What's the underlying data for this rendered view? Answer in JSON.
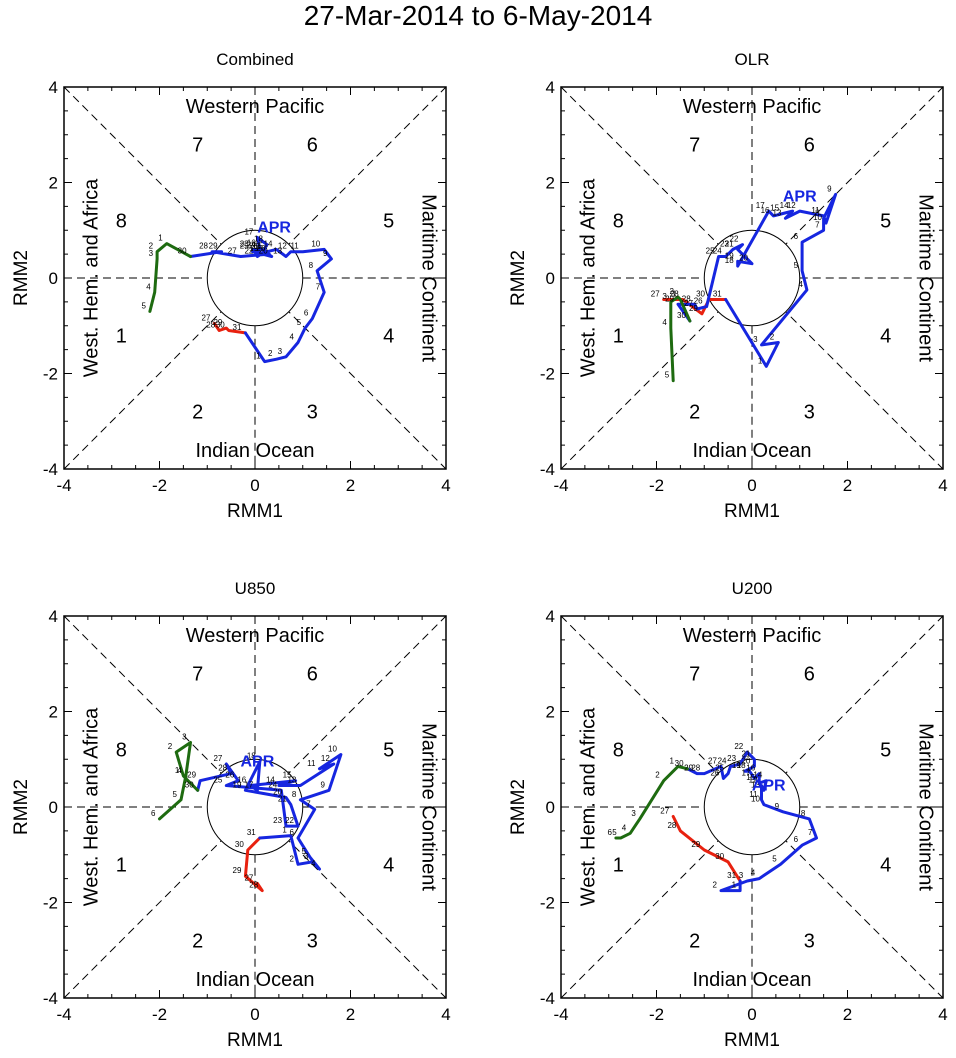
{
  "title": "27-Mar-2014 to 6-May-2014",
  "colors": {
    "march": "#e8210f",
    "april": "#1626e0",
    "may": "#1e6b10",
    "axis": "#000000"
  },
  "region_labels": {
    "top": "Western Pacific",
    "bottom": "Indian Ocean",
    "left": "West. Hem. and Africa",
    "right": "Maritime Continent"
  },
  "phase_labels": [
    {
      "text": "1",
      "x": -2.8,
      "y": -1.2
    },
    {
      "text": "2",
      "x": -1.2,
      "y": -2.8
    },
    {
      "text": "3",
      "x": 1.2,
      "y": -2.8
    },
    {
      "text": "4",
      "x": 2.8,
      "y": -1.2
    },
    {
      "text": "5",
      "x": 2.8,
      "y": 1.2
    },
    {
      "text": "6",
      "x": 1.2,
      "y": 2.8
    },
    {
      "text": "7",
      "x": -1.2,
      "y": 2.8
    },
    {
      "text": "8",
      "x": -2.8,
      "y": 1.2
    }
  ],
  "month_label": "APR",
  "chart_data": [
    {
      "type": "line",
      "title": "Combined",
      "xlabel": "RMM1",
      "ylabel": "RMM2",
      "xlim": [
        -4,
        4
      ],
      "ylim": [
        -4,
        4
      ],
      "xticks": [
        "-4",
        "-2",
        "0",
        "2",
        "4"
      ],
      "yticks": [
        "-4",
        "-2",
        "0",
        "2",
        "4"
      ],
      "apr_label_pos": [
        0.4,
        0.95
      ],
      "series": [
        {
          "name": "Mar",
          "color": "red",
          "points": [
            [
              -0.85,
              -0.95,
              "27"
            ],
            [
              -0.75,
              -1.1,
              "28"
            ],
            [
              -0.6,
              -1.05,
              "29"
            ],
            [
              -0.55,
              -1.1,
              "30"
            ],
            [
              -0.2,
              -1.15,
              "31"
            ]
          ]
        },
        {
          "name": "Apr",
          "color": "blue",
          "points": [
            [
              -0.2,
              -1.15,
              ""
            ],
            [
              0.2,
              -1.75,
              "1"
            ],
            [
              0.45,
              -1.7,
              "2"
            ],
            [
              0.65,
              -1.65,
              "3"
            ],
            [
              0.9,
              -1.35,
              "4"
            ],
            [
              1.05,
              -1.05,
              "5"
            ],
            [
              1.2,
              -0.85,
              "6"
            ],
            [
              1.45,
              -0.3,
              "7"
            ],
            [
              1.3,
              0.15,
              "8"
            ],
            [
              1.6,
              0.4,
              "9"
            ],
            [
              1.45,
              0.6,
              "10"
            ],
            [
              1.0,
              0.55,
              "11"
            ],
            [
              0.75,
              0.55,
              "12"
            ],
            [
              0.65,
              0.45,
              "13"
            ],
            [
              0.45,
              0.6,
              "14"
            ],
            [
              0.25,
              0.55,
              "15"
            ],
            [
              0.1,
              0.62,
              "16"
            ],
            [
              0.05,
              0.85,
              "17"
            ],
            [
              0.25,
              0.7,
              "18"
            ],
            [
              0.15,
              0.5,
              "19"
            ],
            [
              0.35,
              0.45,
              "20"
            ],
            [
              0.2,
              0.55,
              "21"
            ],
            [
              0.05,
              0.45,
              "22"
            ],
            [
              -0.05,
              0.6,
              "23"
            ],
            [
              0.1,
              0.58,
              "24"
            ],
            [
              -0.05,
              0.55,
              "25"
            ],
            [
              0.3,
              0.5,
              "26"
            ],
            [
              -0.3,
              0.45,
              "27"
            ],
            [
              -0.9,
              0.55,
              "28"
            ],
            [
              -0.7,
              0.55,
              "29"
            ],
            [
              -1.35,
              0.45,
              "30"
            ]
          ]
        },
        {
          "name": "May",
          "color": "green",
          "points": [
            [
              -1.35,
              0.45,
              ""
            ],
            [
              -1.85,
              0.72,
              "1"
            ],
            [
              -2.05,
              0.55,
              "2"
            ],
            [
              -2.05,
              0.4,
              "3"
            ],
            [
              -2.1,
              -0.3,
              "4"
            ],
            [
              -2.2,
              -0.7,
              "5"
            ]
          ]
        }
      ]
    },
    {
      "type": "line",
      "title": "OLR",
      "xlabel": "RMM1",
      "ylabel": "RMM2",
      "xlim": [
        -4,
        4
      ],
      "ylim": [
        -4,
        4
      ],
      "xticks": [
        "-4",
        "-2",
        "0",
        "2",
        "4"
      ],
      "yticks": [
        "-4",
        "-2",
        "0",
        "2",
        "4"
      ],
      "apr_label_pos": [
        1.0,
        1.6
      ],
      "series": [
        {
          "name": "Mar",
          "color": "red",
          "points": [
            [
              -1.85,
              -0.45,
              "27"
            ],
            [
              -1.45,
              -0.45,
              "28"
            ],
            [
              -1.05,
              -0.75,
              "29"
            ],
            [
              -0.9,
              -0.45,
              "30"
            ],
            [
              -0.55,
              -0.45,
              "31"
            ]
          ]
        },
        {
          "name": "Apr",
          "color": "blue",
          "points": [
            [
              -0.55,
              -0.45,
              ""
            ],
            [
              0.3,
              -1.85,
              "1"
            ],
            [
              0.55,
              -1.35,
              "2"
            ],
            [
              0.2,
              -1.4,
              "3"
            ],
            [
              1.15,
              -0.25,
              "4"
            ],
            [
              1.05,
              0.15,
              "5"
            ],
            [
              1.05,
              0.75,
              "6"
            ],
            [
              1.5,
              1.0,
              "7"
            ],
            [
              1.5,
              1.25,
              "8"
            ],
            [
              1.75,
              1.75,
              "9"
            ],
            [
              1.55,
              1.15,
              "10"
            ],
            [
              1.5,
              1.3,
              "11"
            ],
            [
              1.0,
              1.4,
              "12"
            ],
            [
              0.7,
              1.25,
              "13"
            ],
            [
              0.85,
              1.4,
              "14"
            ],
            [
              0.65,
              1.35,
              "15"
            ],
            [
              0.45,
              1.3,
              "16"
            ],
            [
              0.35,
              1.4,
              "17"
            ],
            [
              -0.3,
              0.25,
              "18"
            ],
            [
              -0.3,
              0.35,
              "19"
            ],
            [
              0.0,
              0.3,
              "20"
            ],
            [
              -0.3,
              0.6,
              "21"
            ],
            [
              -0.2,
              0.7,
              "22"
            ],
            [
              -0.4,
              0.6,
              "23"
            ],
            [
              -0.55,
              0.45,
              "24"
            ],
            [
              -0.7,
              0.45,
              "25"
            ],
            [
              -0.95,
              -0.6,
              "26"
            ],
            [
              -1.15,
              -0.65,
              "27"
            ],
            [
              -1.2,
              -0.55,
              "28"
            ],
            [
              -1.55,
              -0.55,
              "29"
            ],
            [
              -1.3,
              -0.9,
              "30"
            ]
          ]
        },
        {
          "name": "May",
          "color": "green",
          "points": [
            [
              -1.3,
              -0.9,
              ""
            ],
            [
              -1.5,
              -0.45,
              "1"
            ],
            [
              -1.55,
              -0.4,
              "2"
            ],
            [
              -1.7,
              -0.5,
              "3"
            ],
            [
              -1.7,
              -1.05,
              "4"
            ],
            [
              -1.65,
              -2.15,
              "5"
            ]
          ]
        }
      ]
    },
    {
      "type": "line",
      "title": "U850",
      "xlabel": "RMM1",
      "ylabel": "RMM2",
      "xlim": [
        -4,
        4
      ],
      "ylim": [
        -4,
        4
      ],
      "xticks": [
        "-4",
        "-2",
        "0",
        "2",
        "4"
      ],
      "yticks": [
        "-4",
        "-2",
        "0",
        "2",
        "4"
      ],
      "apr_label_pos": [
        0.05,
        0.85
      ],
      "series": [
        {
          "name": "Mar",
          "color": "red",
          "points": [
            [
              0.05,
              -1.6,
              "27"
            ],
            [
              0.15,
              -1.75,
              "28"
            ],
            [
              -0.2,
              -1.45,
              "29"
            ],
            [
              -0.15,
              -0.9,
              "30"
            ],
            [
              0.1,
              -0.65,
              "31"
            ]
          ]
        },
        {
          "name": "Apr",
          "color": "blue",
          "points": [
            [
              0.1,
              -0.65,
              ""
            ],
            [
              0.75,
              -0.6,
              "1"
            ],
            [
              0.9,
              -1.2,
              "2"
            ],
            [
              1.2,
              -1.15,
              "3"
            ],
            [
              1.35,
              -1.3,
              "4"
            ],
            [
              1.15,
              -1.05,
              "5"
            ],
            [
              0.9,
              -0.65,
              "6"
            ],
            [
              1.25,
              -0.05,
              "7"
            ],
            [
              0.95,
              0.15,
              "8"
            ],
            [
              1.55,
              0.35,
              "9"
            ],
            [
              1.8,
              1.1,
              "10"
            ],
            [
              1.35,
              0.8,
              "11"
            ],
            [
              1.65,
              0.9,
              "12"
            ],
            [
              0.95,
              0.45,
              "13"
            ],
            [
              0.5,
              0.45,
              "14"
            ],
            [
              0.85,
              0.55,
              "15"
            ],
            [
              -0.1,
              0.45,
              "16"
            ],
            [
              0.05,
              0.35,
              "17"
            ],
            [
              0.1,
              0.95,
              "18"
            ],
            [
              -0.2,
              0.35,
              "19"
            ],
            [
              0.65,
              0.2,
              "20"
            ],
            [
              0.75,
              0.05,
              "21"
            ],
            [
              0.9,
              -0.4,
              "22"
            ],
            [
              0.65,
              -0.4,
              "23"
            ],
            [
              0.55,
              0.35,
              "24"
            ],
            [
              -0.6,
              0.45,
              "25"
            ],
            [
              -0.35,
              0.55,
              "26"
            ],
            [
              -0.6,
              0.9,
              "27"
            ],
            [
              -0.5,
              0.7,
              "28"
            ],
            [
              -1.15,
              0.55,
              "29"
            ],
            [
              -1.2,
              0.35,
              "30"
            ]
          ]
        },
        {
          "name": "May",
          "color": "green",
          "points": [
            [
              -1.2,
              0.35,
              ""
            ],
            [
              -1.5,
              0.65,
              "1"
            ],
            [
              -1.65,
              1.15,
              "2"
            ],
            [
              -1.35,
              1.35,
              "3"
            ],
            [
              -1.45,
              0.65,
              "4"
            ],
            [
              -1.55,
              0.15,
              "5"
            ],
            [
              -2.0,
              -0.25,
              "6"
            ]
          ]
        }
      ]
    },
    {
      "type": "line",
      "title": "U200",
      "xlabel": "RMM1",
      "ylabel": "RMM2",
      "xlim": [
        -4,
        4
      ],
      "ylim": [
        -4,
        4
      ],
      "xticks": [
        "-4",
        "-2",
        "0",
        "2",
        "4"
      ],
      "yticks": [
        "-4",
        "-2",
        "0",
        "2",
        "4"
      ],
      "apr_label_pos": [
        0.35,
        0.35
      ],
      "series": [
        {
          "name": "Mar",
          "color": "red",
          "points": [
            [
              -1.65,
              -0.2,
              "27"
            ],
            [
              -1.5,
              -0.5,
              "28"
            ],
            [
              -1.0,
              -0.9,
              "29"
            ],
            [
              -0.5,
              -1.15,
              "30"
            ],
            [
              -0.25,
              -1.55,
              "31"
            ]
          ]
        },
        {
          "name": "Apr",
          "color": "blue",
          "points": [
            [
              -0.25,
              -1.55,
              ""
            ],
            [
              -0.25,
              -1.75,
              "1"
            ],
            [
              -0.65,
              -1.75,
              "2"
            ],
            [
              -0.1,
              -1.55,
              "3"
            ],
            [
              0.15,
              -1.5,
              "4"
            ],
            [
              0.6,
              -1.2,
              "5"
            ],
            [
              1.05,
              -0.8,
              "6"
            ],
            [
              1.35,
              -0.65,
              "7"
            ],
            [
              1.2,
              -0.25,
              "8"
            ],
            [
              0.65,
              -0.1,
              "9"
            ],
            [
              0.25,
              0.05,
              "10"
            ],
            [
              0.2,
              0.15,
              "11"
            ],
            [
              0.2,
              0.45,
              "12"
            ],
            [
              0.25,
              0.35,
              "13"
            ],
            [
              0.3,
              0.55,
              "14"
            ],
            [
              0.15,
              0.5,
              "15"
            ],
            [
              0.15,
              0.7,
              "16"
            ],
            [
              0.05,
              0.6,
              "17"
            ],
            [
              -0.05,
              0.75,
              "18"
            ],
            [
              -0.15,
              0.75,
              "19"
            ],
            [
              0.05,
              0.85,
              "20"
            ],
            [
              0.05,
              1.0,
              "21"
            ],
            [
              -0.1,
              1.15,
              "22"
            ],
            [
              -0.25,
              0.9,
              "23"
            ],
            [
              -0.45,
              0.85,
              "24"
            ],
            [
              -0.5,
              0.7,
              "25"
            ],
            [
              -0.6,
              0.6,
              "26"
            ],
            [
              -0.65,
              0.85,
              "27"
            ],
            [
              -1.0,
              0.7,
              "28"
            ],
            [
              -1.15,
              0.7,
              "29"
            ],
            [
              -1.35,
              0.8,
              "30"
            ]
          ]
        },
        {
          "name": "May",
          "color": "green",
          "points": [
            [
              -1.35,
              0.8,
              ""
            ],
            [
              -1.55,
              0.85,
              "1"
            ],
            [
              -1.85,
              0.55,
              "2"
            ],
            [
              -2.35,
              -0.25,
              "3"
            ],
            [
              -2.55,
              -0.55,
              "4"
            ],
            [
              -2.75,
              -0.65,
              "5"
            ],
            [
              -2.85,
              -0.65,
              "6"
            ]
          ]
        }
      ]
    }
  ]
}
